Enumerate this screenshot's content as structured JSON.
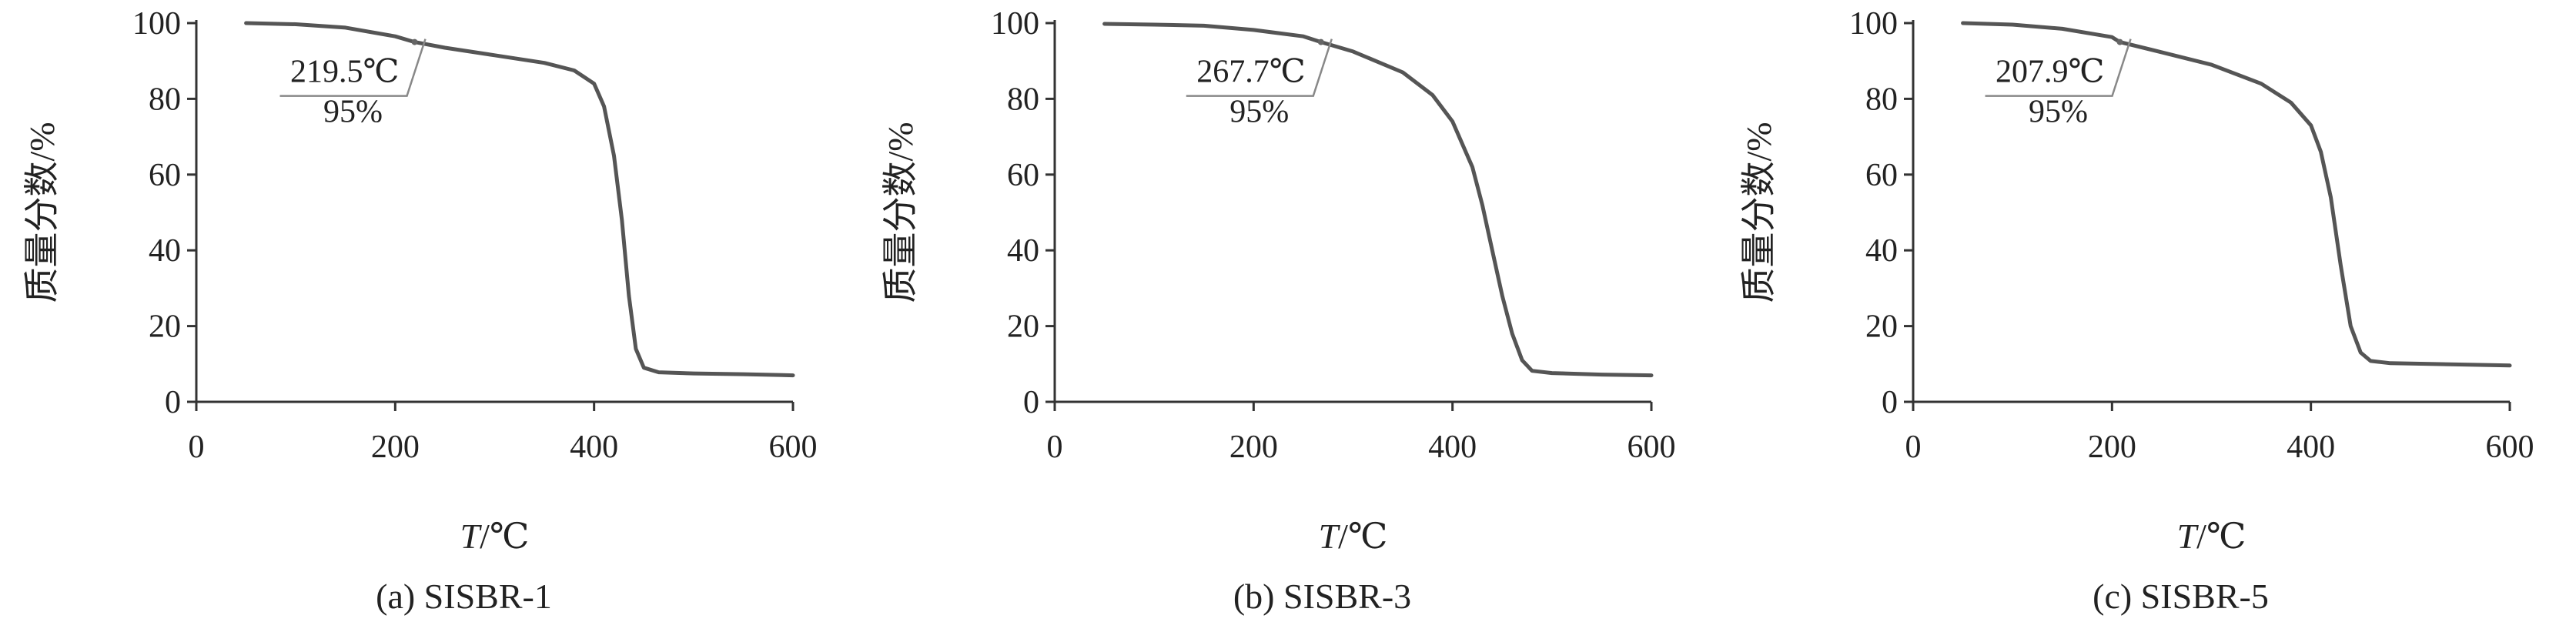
{
  "chart_data": [
    {
      "type": "line",
      "caption": "(a) SISBR-1",
      "xlabel": "T/℃",
      "xlabel_italic": "T",
      "xlabel_unit": "/℃",
      "ylabel": "质量分数/%",
      "xlim": [
        0,
        600
      ],
      "ylim": [
        0,
        100
      ],
      "x_ticks": [
        "0",
        "200",
        "400",
        "600"
      ],
      "y_ticks": [
        "0",
        "20",
        "40",
        "60",
        "80",
        "100"
      ],
      "series": [
        {
          "color": "#555555",
          "points": [
            [
              50,
              100
            ],
            [
              100,
              99.7
            ],
            [
              150,
              98.8
            ],
            [
              200,
              96.5
            ],
            [
              219.5,
              95
            ],
            [
              250,
              93.5
            ],
            [
              300,
              91.5
            ],
            [
              350,
              89.5
            ],
            [
              380,
              87.5
            ],
            [
              400,
              84
            ],
            [
              410,
              78
            ],
            [
              420,
              65
            ],
            [
              428,
              48
            ],
            [
              435,
              28
            ],
            [
              442,
              14
            ],
            [
              450,
              9
            ],
            [
              465,
              7.8
            ],
            [
              500,
              7.5
            ],
            [
              550,
              7.3
            ],
            [
              600,
              7
            ]
          ]
        }
      ],
      "annotation": {
        "temp": "219.5℃",
        "mass": "95%",
        "x": 219.5,
        "y": 95
      }
    },
    {
      "type": "line",
      "caption": "(b) SISBR-3",
      "xlabel": "T/℃",
      "xlabel_italic": "T",
      "xlabel_unit": "/℃",
      "ylabel": "质量分数/%",
      "xlim": [
        0,
        600
      ],
      "ylim": [
        0,
        100
      ],
      "x_ticks": [
        "0",
        "200",
        "400",
        "600"
      ],
      "y_ticks": [
        "0",
        "20",
        "40",
        "60",
        "80",
        "100"
      ],
      "series": [
        {
          "color": "#555555",
          "points": [
            [
              50,
              99.8
            ],
            [
              100,
              99.6
            ],
            [
              150,
              99.3
            ],
            [
              200,
              98.2
            ],
            [
              250,
              96.5
            ],
            [
              267.7,
              95
            ],
            [
              300,
              92.5
            ],
            [
              350,
              87
            ],
            [
              380,
              81
            ],
            [
              400,
              74
            ],
            [
              420,
              62
            ],
            [
              430,
              52
            ],
            [
              440,
              40
            ],
            [
              450,
              28
            ],
            [
              460,
              18
            ],
            [
              470,
              11
            ],
            [
              480,
              8.2
            ],
            [
              500,
              7.6
            ],
            [
              550,
              7.2
            ],
            [
              600,
              7
            ]
          ]
        }
      ],
      "annotation": {
        "temp": "267.7℃",
        "mass": "95%",
        "x": 267.7,
        "y": 95
      }
    },
    {
      "type": "line",
      "caption": "(c) SISBR-5",
      "xlabel": "T/℃",
      "xlabel_italic": "T",
      "xlabel_unit": "/℃",
      "ylabel": "质量分数/%",
      "xlim": [
        0,
        600
      ],
      "ylim": [
        0,
        100
      ],
      "x_ticks": [
        "0",
        "200",
        "400",
        "600"
      ],
      "y_ticks": [
        "0",
        "20",
        "40",
        "60",
        "80",
        "100"
      ],
      "series": [
        {
          "color": "#555555",
          "points": [
            [
              50,
              100
            ],
            [
              100,
              99.6
            ],
            [
              150,
              98.5
            ],
            [
              200,
              96.3
            ],
            [
              207.9,
              95
            ],
            [
              250,
              92.3
            ],
            [
              300,
              89
            ],
            [
              350,
              84
            ],
            [
              380,
              79
            ],
            [
              400,
              73
            ],
            [
              410,
              66
            ],
            [
              420,
              54
            ],
            [
              430,
              36
            ],
            [
              440,
              20
            ],
            [
              450,
              13
            ],
            [
              460,
              10.8
            ],
            [
              480,
              10.2
            ],
            [
              520,
              10
            ],
            [
              600,
              9.6
            ]
          ]
        }
      ],
      "annotation": {
        "temp": "207.9℃",
        "mass": "95%",
        "x": 207.9,
        "y": 95
      }
    }
  ]
}
